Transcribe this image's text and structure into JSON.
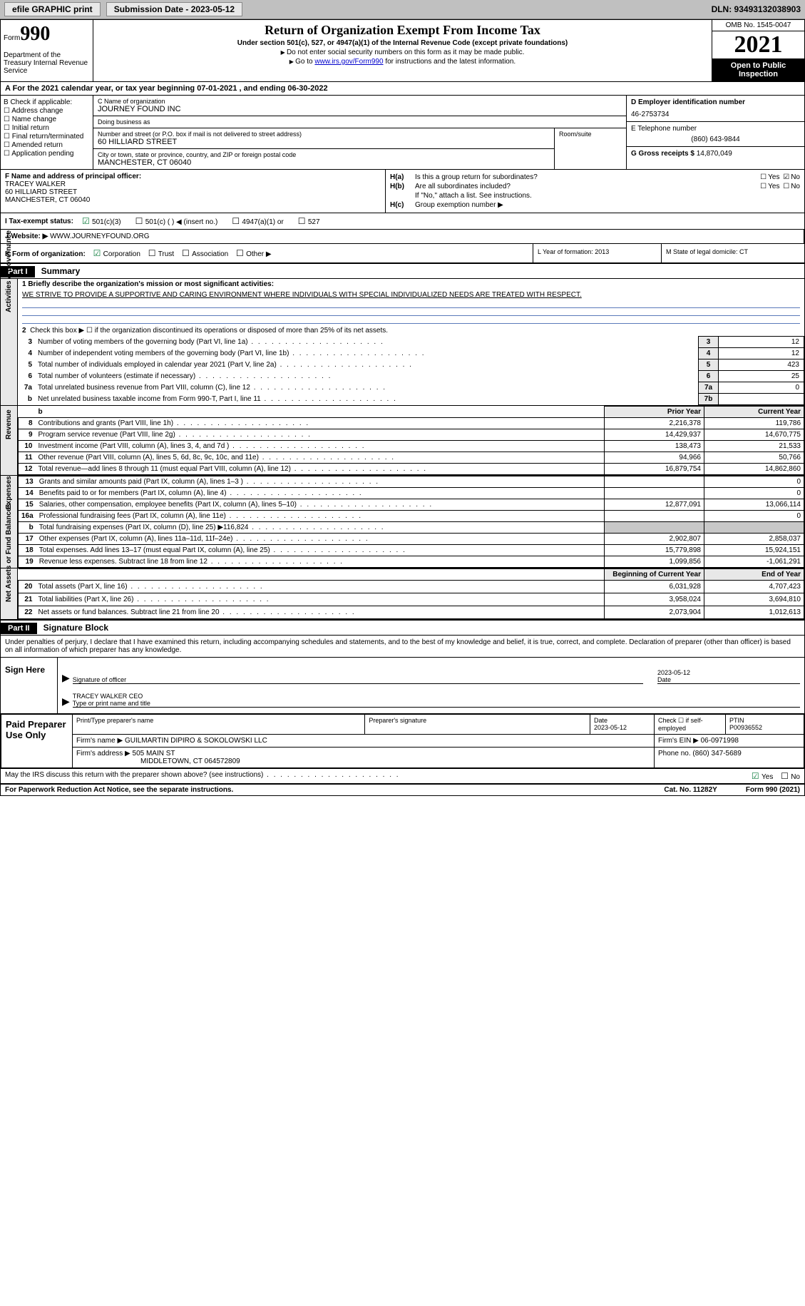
{
  "topbar": {
    "efile": "efile GRAPHIC print",
    "submission": "Submission Date - 2023-05-12",
    "dln": "DLN: 93493132038903"
  },
  "header": {
    "form_prefix": "Form",
    "form_no": "990",
    "dept": "Department of the Treasury Internal Revenue Service",
    "title": "Return of Organization Exempt From Income Tax",
    "subtitle": "Under section 501(c), 527, or 4947(a)(1) of the Internal Revenue Code (except private foundations)",
    "instr1": "Do not enter social security numbers on this form as it may be made public.",
    "instr2_pre": "Go to ",
    "instr2_link": "www.irs.gov/Form990",
    "instr2_post": " for instructions and the latest information.",
    "omb": "OMB No. 1545-0047",
    "year": "2021",
    "public": "Open to Public Inspection"
  },
  "period": {
    "text": "A For the 2021 calendar year, or tax year beginning 07-01-2021   , and ending 06-30-2022"
  },
  "checkB": {
    "label": "B Check if applicable:",
    "opts": [
      "Address change",
      "Name change",
      "Initial return",
      "Final return/terminated",
      "Amended return",
      "Application pending"
    ]
  },
  "entity": {
    "name_lbl": "C Name of organization",
    "name": "JOURNEY FOUND INC",
    "dba_lbl": "Doing business as",
    "dba": "",
    "addr_lbl": "Number and street (or P.O. box if mail is not delivered to street address)",
    "addr": "60 HILLIARD STREET",
    "room_lbl": "Room/suite",
    "city_lbl": "City or town, state or province, country, and ZIP or foreign postal code",
    "city": "MANCHESTER, CT  06040"
  },
  "entityD": {
    "ein_lbl": "D Employer identification number",
    "ein": "46-2753734",
    "phone_lbl": "E Telephone number",
    "phone": "(860) 643-9844",
    "gross_lbl": "G Gross receipts $",
    "gross": "14,870,049"
  },
  "officer": {
    "lbl": "F Name and address of principal officer:",
    "name": "TRACEY WALKER",
    "addr1": "60 HILLIARD STREET",
    "addr2": "MANCHESTER, CT  06040"
  },
  "hsec": {
    "ha": "Is this a group return for subordinates?",
    "hb": "Are all subordinates included?",
    "hb_note": "If \"No,\" attach a list. See instructions.",
    "hc": "Group exemption number ▶",
    "ha_no": true
  },
  "status": {
    "lbl": "I   Tax-exempt status:",
    "opts": [
      "501(c)(3)",
      "501(c) (  ) ◀ (insert no.)",
      "4947(a)(1) or",
      "527"
    ],
    "checked": 0
  },
  "web": {
    "lbl": "J  Website: ▶",
    "val": "WWW.JOURNEYFOUND.ORG"
  },
  "korg": {
    "lbl": "K Form of organization:",
    "opts": [
      "Corporation",
      "Trust",
      "Association",
      "Other ▶"
    ],
    "checked": 0,
    "L": "L Year of formation: 2013",
    "M": "M State of legal domicile: CT"
  },
  "part1": {
    "hdr": "Part I",
    "title": "Summary",
    "line1_lbl": "1  Briefly describe the organization's mission or most significant activities:",
    "mission": "WE STRIVE TO PROVIDE A SUPPORTIVE AND CARING ENVIRONMENT WHERE INDIVIDUALS WITH SPECIAL INDIVIDUALIZED NEEDS ARE TREATED WITH RESPECT.",
    "line2": "Check this box ▶ ☐  if the organization discontinued its operations or disposed of more than 25% of its net assets.",
    "sidelabels": [
      "Activities & Governance",
      "Revenue",
      "Expenses",
      "Net Assets or Fund Balances"
    ],
    "rows_gov": [
      {
        "n": "3",
        "d": "Number of voting members of the governing body (Part VI, line 1a)",
        "box": "3",
        "v": "12"
      },
      {
        "n": "4",
        "d": "Number of independent voting members of the governing body (Part VI, line 1b)",
        "box": "4",
        "v": "12"
      },
      {
        "n": "5",
        "d": "Total number of individuals employed in calendar year 2021 (Part V, line 2a)",
        "box": "5",
        "v": "423"
      },
      {
        "n": "6",
        "d": "Total number of volunteers (estimate if necessary)",
        "box": "6",
        "v": "25"
      },
      {
        "n": "7a",
        "d": "Total unrelated business revenue from Part VIII, column (C), line 12",
        "box": "7a",
        "v": "0"
      },
      {
        "n": "b",
        "d": "Net unrelated business taxable income from Form 990-T, Part I, line 11",
        "box": "7b",
        "v": ""
      }
    ],
    "two_year_hdr": {
      "py": "Prior Year",
      "cy": "Current Year"
    },
    "rows_rev": [
      {
        "n": "8",
        "d": "Contributions and grants (Part VIII, line 1h)",
        "py": "2,216,378",
        "cy": "119,786"
      },
      {
        "n": "9",
        "d": "Program service revenue (Part VIII, line 2g)",
        "py": "14,429,937",
        "cy": "14,670,775"
      },
      {
        "n": "10",
        "d": "Investment income (Part VIII, column (A), lines 3, 4, and 7d )",
        "py": "138,473",
        "cy": "21,533"
      },
      {
        "n": "11",
        "d": "Other revenue (Part VIII, column (A), lines 5, 6d, 8c, 9c, 10c, and 11e)",
        "py": "94,966",
        "cy": "50,766"
      },
      {
        "n": "12",
        "d": "Total revenue—add lines 8 through 11 (must equal Part VIII, column (A), line 12)",
        "py": "16,879,754",
        "cy": "14,862,860"
      }
    ],
    "rows_exp": [
      {
        "n": "13",
        "d": "Grants and similar amounts paid (Part IX, column (A), lines 1–3 )",
        "py": "",
        "cy": "0"
      },
      {
        "n": "14",
        "d": "Benefits paid to or for members (Part IX, column (A), line 4)",
        "py": "",
        "cy": "0"
      },
      {
        "n": "15",
        "d": "Salaries, other compensation, employee benefits (Part IX, column (A), lines 5–10)",
        "py": "12,877,091",
        "cy": "13,066,114"
      },
      {
        "n": "16a",
        "d": "Professional fundraising fees (Part IX, column (A), line 11e)",
        "py": "",
        "cy": "0"
      },
      {
        "n": "b",
        "d": "Total fundraising expenses (Part IX, column (D), line 25) ▶116,824",
        "py": "shade",
        "cy": "shade"
      },
      {
        "n": "17",
        "d": "Other expenses (Part IX, column (A), lines 11a–11d, 11f–24e)",
        "py": "2,902,807",
        "cy": "2,858,037"
      },
      {
        "n": "18",
        "d": "Total expenses. Add lines 13–17 (must equal Part IX, column (A), line 25)",
        "py": "15,779,898",
        "cy": "15,924,151"
      },
      {
        "n": "19",
        "d": "Revenue less expenses. Subtract line 18 from line 12",
        "py": "1,099,856",
        "cy": "-1,061,291"
      }
    ],
    "net_hdr": {
      "py": "Beginning of Current Year",
      "cy": "End of Year"
    },
    "rows_net": [
      {
        "n": "20",
        "d": "Total assets (Part X, line 16)",
        "py": "6,031,928",
        "cy": "4,707,423"
      },
      {
        "n": "21",
        "d": "Total liabilities (Part X, line 26)",
        "py": "3,958,024",
        "cy": "3,694,810"
      },
      {
        "n": "22",
        "d": "Net assets or fund balances. Subtract line 21 from line 20",
        "py": "2,073,904",
        "cy": "1,012,613"
      }
    ]
  },
  "part2": {
    "hdr": "Part II",
    "title": "Signature Block",
    "decl": "Under penalties of perjury, I declare that I have examined this return, including accompanying schedules and statements, and to the best of my knowledge and belief, it is true, correct, and complete. Declaration of preparer (other than officer) is based on all information of which preparer has any knowledge.",
    "sign_here": "Sign Here",
    "sig_officer": "Signature of officer",
    "sig_date": "2023-05-12",
    "sig_date_lbl": "Date",
    "sig_name": "TRACEY WALKER CEO",
    "sig_name_lbl": "Type or print name and title"
  },
  "prep": {
    "title": "Paid Preparer Use Only",
    "print_lbl": "Print/Type preparer's name",
    "sig_lbl": "Preparer's signature",
    "date_lbl": "Date",
    "date": "2023-05-12",
    "check_lbl": "Check ☐ if self-employed",
    "ptin_lbl": "PTIN",
    "ptin": "P00936552",
    "firm_name_lbl": "Firm's name   ▶",
    "firm_name": "GUILMARTIN DIPIRO & SOKOLOWSKI LLC",
    "firm_ein_lbl": "Firm's EIN ▶",
    "firm_ein": "06-0971998",
    "firm_addr_lbl": "Firm's address ▶",
    "firm_addr": "505 MAIN ST",
    "firm_city": "MIDDLETOWN, CT  064572809",
    "firm_phone_lbl": "Phone no.",
    "firm_phone": "(860) 347-5689"
  },
  "footer": {
    "discuss": "May the IRS discuss this return with the preparer shown above? (see instructions)",
    "yes_checked": true,
    "pdn": "For Paperwork Reduction Act Notice, see the separate instructions.",
    "cat": "Cat. No. 11282Y",
    "form": "Form 990 (2021)"
  }
}
